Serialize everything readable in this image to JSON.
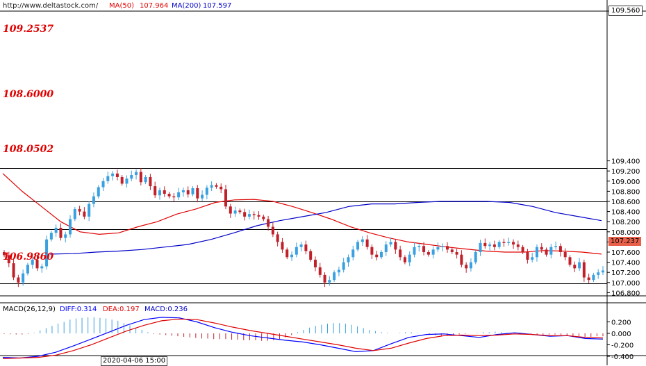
{
  "header": {
    "url": "http://www.deltastock.com/",
    "ma50_label": "MA(50)",
    "ma50_value": "107.964",
    "ma200_label": "MA(200)",
    "ma200_value": "107.597"
  },
  "price_tags": {
    "top": "109.560",
    "current": "107.237"
  },
  "levels": [
    "109.2537",
    "108.6000",
    "108.0502",
    "106.9860"
  ],
  "macd_header": {
    "name": "MACD(26,12,9)",
    "diff": "DIFF:0.314",
    "dea": "DEA:0.197",
    "macd": "MACD:0.236"
  },
  "time_label": "2020-04-06 15:00",
  "colors": {
    "up": "#3aa0e0",
    "down": "#c0202a",
    "ma50": "#e00000",
    "ma200": "#0000c8",
    "diff": "#0000ff",
    "dea": "#e00000",
    "level": "#e00000"
  },
  "chart_data": [
    {
      "type": "candlestick",
      "ylim": [
        106.6,
        109.6
      ],
      "y_ticks": [
        "109.400",
        "109.200",
        "109.000",
        "108.800",
        "108.600",
        "108.400",
        "108.200",
        "108.000",
        "107.800",
        "107.600",
        "107.400",
        "107.200",
        "107.000",
        "106.800"
      ],
      "levels": [
        109.2537,
        108.6,
        108.0502,
        106.986
      ],
      "closes": [
        107.54,
        107.38,
        107.1,
        107.0,
        107.18,
        107.35,
        107.45,
        107.28,
        107.32,
        107.85,
        107.98,
        108.08,
        107.88,
        107.95,
        108.25,
        108.45,
        108.4,
        108.3,
        108.55,
        108.7,
        108.88,
        109.0,
        109.1,
        109.15,
        109.08,
        108.95,
        109.05,
        109.12,
        109.18,
        108.98,
        109.08,
        108.9,
        108.72,
        108.82,
        108.75,
        108.7,
        108.68,
        108.78,
        108.82,
        108.74,
        108.86,
        108.66,
        108.73,
        108.87,
        108.92,
        108.89,
        108.84,
        108.5,
        108.36,
        108.42,
        108.39,
        108.3,
        108.35,
        108.33,
        108.3,
        108.25,
        108.1,
        107.95,
        107.8,
        107.65,
        107.5,
        107.55,
        107.7,
        107.75,
        107.62,
        107.45,
        107.3,
        107.15,
        107.0,
        107.05,
        107.2,
        107.25,
        107.4,
        107.5,
        107.65,
        107.8,
        107.85,
        107.7,
        107.55,
        107.5,
        107.6,
        107.75,
        107.8,
        107.65,
        107.5,
        107.4,
        107.55,
        107.7,
        107.72,
        107.6,
        107.55,
        107.65,
        107.7,
        107.72,
        107.65,
        107.6,
        107.55,
        107.35,
        107.28,
        107.4,
        107.6,
        107.78,
        107.72,
        107.75,
        107.7,
        107.8,
        107.78,
        107.8,
        107.75,
        107.7,
        107.6,
        107.45,
        107.5,
        107.7,
        107.65,
        107.55,
        107.7,
        107.72,
        107.6,
        107.5,
        107.35,
        107.28,
        107.4,
        107.1,
        107.05,
        107.15,
        107.2,
        107.237
      ],
      "ma50": [
        109.15,
        108.8,
        108.5,
        108.2,
        108.0,
        107.95,
        107.98,
        108.1,
        108.2,
        108.35,
        108.45,
        108.58,
        108.63,
        108.64,
        108.6,
        108.5,
        108.38,
        108.25,
        108.1,
        107.98,
        107.88,
        107.8,
        107.75,
        107.7,
        107.66,
        107.62,
        107.6,
        107.6,
        107.63,
        107.62,
        107.6,
        107.56
      ],
      "ma200": [
        107.56,
        107.57,
        107.6,
        107.62,
        107.65,
        107.7,
        107.75,
        107.85,
        107.98,
        108.12,
        108.22,
        108.3,
        108.38,
        108.5,
        108.55,
        108.55,
        108.58,
        108.6,
        108.6,
        108.6,
        108.58,
        108.5,
        108.38,
        108.3,
        108.22
      ],
      "ma200_start_index": 18
    },
    {
      "type": "bar_line",
      "name": "MACD(26,12,9)",
      "ylim": [
        -0.45,
        0.33
      ],
      "y_ticks": [
        "0.200",
        "0.000",
        "-0.200",
        "-0.400"
      ],
      "macd_hist": [
        -0.01,
        -0.015,
        -0.02,
        -0.02,
        -0.01,
        0.01,
        0.05,
        0.09,
        0.13,
        0.17,
        0.2,
        0.24,
        0.26,
        0.27,
        0.28,
        0.28,
        0.27,
        0.26,
        0.24,
        0.22,
        0.18,
        0.14,
        0.1,
        0.06,
        0.02,
        -0.01,
        -0.02,
        -0.03,
        -0.04,
        -0.05,
        -0.06,
        -0.07,
        -0.08,
        -0.09,
        -0.09,
        -0.1,
        -0.1,
        -0.1,
        -0.11,
        -0.11,
        -0.12,
        -0.12,
        -0.12,
        -0.13,
        -0.13,
        -0.12,
        -0.1,
        -0.07,
        -0.03,
        0.02,
        0.06,
        0.1,
        0.13,
        0.15,
        0.17,
        0.18,
        0.18,
        0.17,
        0.15,
        0.12,
        0.09,
        0.06,
        0.04,
        0.02,
        0.01,
        0.0,
        0.01,
        0.02,
        0.02,
        0.01,
        0.0,
        -0.02,
        -0.03,
        -0.04,
        -0.04,
        -0.03,
        -0.02,
        -0.01,
        0.0,
        0.01,
        0.02,
        0.02,
        0.03,
        0.02,
        0.01,
        0.0,
        -0.01,
        -0.02,
        -0.02,
        -0.03,
        -0.03,
        -0.02,
        -0.02,
        -0.03,
        -0.04,
        -0.05,
        -0.05,
        -0.06,
        -0.06,
        -0.05,
        -0.05
      ],
      "diff": [
        -0.42,
        -0.43,
        -0.4,
        -0.33,
        -0.22,
        -0.1,
        0.02,
        0.14,
        0.24,
        0.28,
        0.27,
        0.2,
        0.1,
        0.02,
        -0.04,
        -0.08,
        -0.12,
        -0.15,
        -0.2,
        -0.26,
        -0.32,
        -0.3,
        -0.18,
        -0.07,
        -0.02,
        -0.01,
        -0.04,
        -0.07,
        -0.02,
        0.01,
        -0.02,
        -0.05,
        -0.04,
        -0.09,
        -0.1
      ],
      "dea": [
        -0.44,
        -0.43,
        -0.42,
        -0.38,
        -0.3,
        -0.2,
        -0.08,
        0.04,
        0.14,
        0.22,
        0.25,
        0.24,
        0.18,
        0.11,
        0.05,
        0.0,
        -0.05,
        -0.1,
        -0.15,
        -0.2,
        -0.26,
        -0.3,
        -0.26,
        -0.17,
        -0.09,
        -0.04,
        -0.03,
        -0.04,
        -0.03,
        -0.01,
        -0.02,
        -0.04,
        -0.04,
        -0.07,
        -0.08
      ]
    }
  ]
}
